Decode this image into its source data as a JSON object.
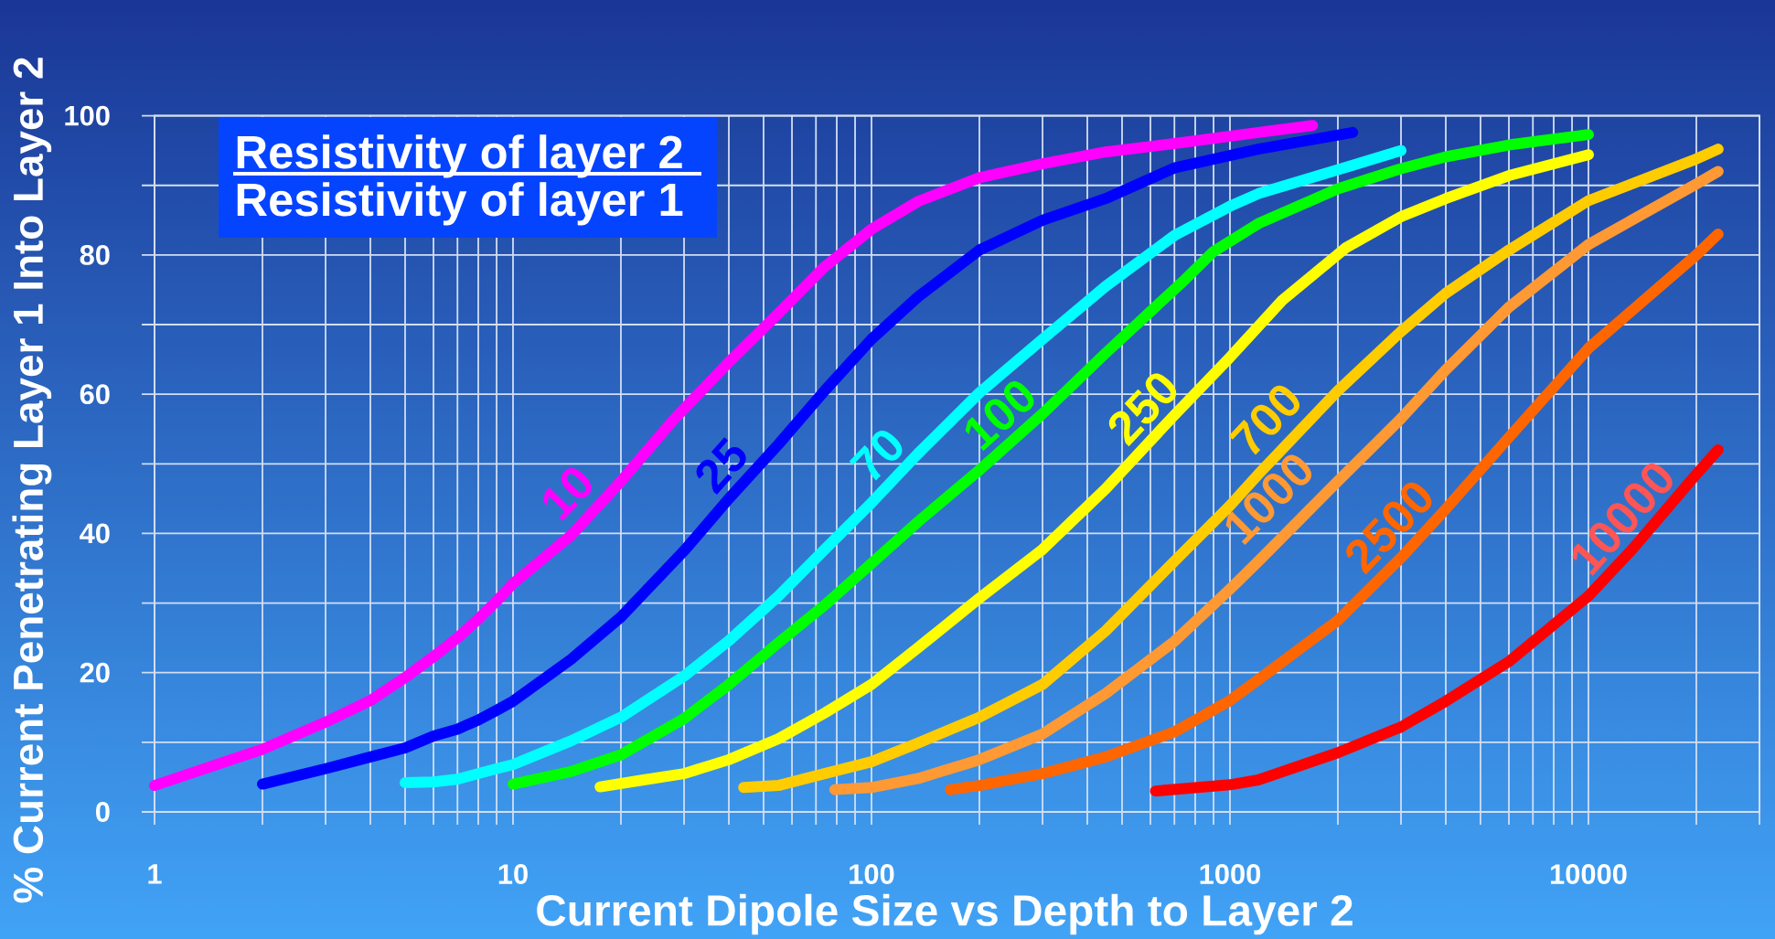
{
  "chart_data": {
    "type": "line",
    "xlabel": "Current Dipole Size vs Depth to Layer 2",
    "ylabel": "% Current Penetrating Layer 1 Into Layer 2",
    "annotations": [
      "Resistivity of layer 2",
      "Resistivity of layer 1"
    ],
    "log": "x",
    "grid": true,
    "xlim": [
      1,
      30000
    ],
    "ylim": [
      0,
      100
    ],
    "xticks": [
      1,
      {
        "value": 2,
        "label": null
      },
      {
        "value": 3,
        "label": null
      },
      {
        "value": 4,
        "label": null
      },
      {
        "value": 5,
        "label": null
      },
      {
        "value": 6,
        "label": null
      },
      {
        "value": 7,
        "label": null
      },
      {
        "value": 8,
        "label": null
      },
      {
        "value": 9,
        "label": null
      },
      10,
      {
        "value": 20,
        "label": null
      },
      {
        "value": 30,
        "label": null
      },
      {
        "value": 40,
        "label": null
      },
      {
        "value": 50,
        "label": null
      },
      {
        "value": 60,
        "label": null
      },
      {
        "value": 70,
        "label": null
      },
      {
        "value": 80,
        "label": null
      },
      {
        "value": 90,
        "label": null
      },
      100,
      {
        "value": 200,
        "label": null
      },
      {
        "value": 300,
        "label": null
      },
      {
        "value": 400,
        "label": null
      },
      {
        "value": 500,
        "label": null
      },
      {
        "value": 600,
        "label": null
      },
      {
        "value": 700,
        "label": null
      },
      {
        "value": 800,
        "label": null
      },
      {
        "value": 900,
        "label": null
      },
      1000,
      {
        "value": 2000,
        "label": null
      },
      {
        "value": 3000,
        "label": null
      },
      {
        "value": 4000,
        "label": null
      },
      {
        "value": 5000,
        "label": null
      },
      {
        "value": 6000,
        "label": null
      },
      {
        "value": 7000,
        "label": null
      },
      {
        "value": 8000,
        "label": null
      },
      {
        "value": 9000,
        "label": null
      },
      10000,
      {
        "value": 20000,
        "label": null
      },
      {
        "value": 30000,
        "label": null
      }
    ],
    "yticks": [
      0,
      {
        "value": 10,
        "label": null
      },
      20,
      {
        "value": 30,
        "label": null
      },
      40,
      {
        "value": 50,
        "label": null
      },
      60,
      {
        "value": 70,
        "label": null
      },
      80,
      {
        "value": 90,
        "label": null
      },
      100
    ],
    "series": [
      {
        "name": "10",
        "color": "#ff00ff",
        "x": [
          1,
          2,
          3,
          4,
          5,
          6,
          7,
          8,
          9,
          10,
          14.5,
          20,
          28,
          40,
          55,
          74,
          100,
          135,
          200,
          300,
          450,
          750,
          1200,
          1700
        ],
        "values": [
          3.8,
          9.0,
          12.9,
          16.0,
          19.3,
          22.3,
          25.0,
          27.7,
          30.3,
          32.8,
          39.7,
          47.5,
          56.3,
          64.6,
          71.6,
          78.3,
          83.7,
          87.7,
          91.1,
          93.1,
          94.8,
          96.2,
          97.6,
          98.6
        ]
      },
      {
        "name": "25",
        "color": "#0000ff",
        "x": [
          2,
          3,
          4,
          5,
          6,
          7,
          8,
          9,
          10,
          14.5,
          20,
          30,
          40,
          55,
          74,
          100,
          135,
          200,
          300,
          450,
          700,
          1200,
          2200
        ],
        "values": [
          4.0,
          6.2,
          7.9,
          9.2,
          10.9,
          11.9,
          13.2,
          14.6,
          15.9,
          21.9,
          28.0,
          37.5,
          45.0,
          52.8,
          60.5,
          67.9,
          74.0,
          80.7,
          85.0,
          88.1,
          92.5,
          95.2,
          97.6
        ]
      },
      {
        "name": "70",
        "color": "#00ffff",
        "x": [
          5,
          6,
          7,
          9,
          10,
          14.5,
          20,
          30,
          40,
          55,
          74,
          100,
          135,
          200,
          300,
          450,
          700,
          1000,
          1200,
          2200,
          3000
        ],
        "values": [
          4.2,
          4.3,
          4.7,
          6.2,
          6.8,
          10.2,
          13.6,
          19.5,
          24.6,
          31.0,
          37.7,
          44.4,
          51.5,
          60.2,
          67.9,
          75.5,
          82.8,
          87.0,
          88.8,
          92.9,
          95.0
        ]
      },
      {
        "name": "100",
        "color": "#00ff00",
        "x": [
          10,
          14.5,
          20,
          30,
          40,
          55,
          74,
          100,
          135,
          200,
          300,
          450,
          750,
          900,
          1200,
          2000,
          3000,
          4000,
          6000,
          10000
        ],
        "values": [
          4.0,
          5.8,
          8.2,
          13.4,
          18.3,
          24.3,
          29.7,
          35.7,
          41.7,
          49.1,
          57.2,
          65.9,
          76.5,
          80.5,
          84.5,
          89.5,
          92.4,
          94.1,
          95.8,
          97.3
        ]
      },
      {
        "name": "250",
        "color": "#ffff00",
        "x": [
          17.5,
          22.5,
          30,
          40,
          55,
          74,
          100,
          135,
          200,
          300,
          450,
          700,
          1000,
          1400,
          2100,
          3000,
          4000,
          6000,
          10000
        ],
        "values": [
          3.6,
          4.5,
          5.5,
          7.5,
          10.5,
          14.2,
          18.3,
          23.6,
          30.7,
          37.7,
          46.4,
          57.0,
          65.3,
          73.5,
          81.0,
          85.5,
          88.1,
          91.4,
          94.4
        ]
      },
      {
        "name": "700",
        "color": "#ffcc00",
        "x": [
          44,
          55,
          74,
          100,
          135,
          200,
          300,
          450,
          700,
          1000,
          1200,
          2000,
          3000,
          4000,
          6000,
          10000,
          20000,
          23000
        ],
        "values": [
          3.5,
          3.8,
          5.5,
          7.2,
          9.9,
          13.6,
          18.3,
          26.0,
          36.0,
          44.0,
          48.5,
          60.5,
          69.0,
          74.5,
          80.7,
          87.8,
          93.8,
          95.2
        ]
      },
      {
        "name": "1000",
        "color": "#ff9933",
        "x": [
          79,
          100,
          135,
          200,
          300,
          450,
          700,
          1000,
          1200,
          2000,
          3000,
          4000,
          6000,
          10000,
          20000,
          23000
        ],
        "values": [
          3.2,
          3.5,
          4.8,
          7.5,
          11.2,
          17.0,
          24.5,
          32.0,
          36.0,
          47.5,
          56.5,
          63.5,
          72.5,
          81.5,
          90.2,
          92.0
        ]
      },
      {
        "name": "2500",
        "color": "#ff6600",
        "x": [
          166,
          200,
          300,
          450,
          700,
          1000,
          1200,
          2000,
          3000,
          4000,
          6000,
          10000,
          20000,
          23000
        ],
        "values": [
          3.2,
          3.8,
          5.5,
          7.9,
          11.5,
          16.0,
          19.0,
          27.5,
          36.5,
          43.5,
          53.8,
          66.6,
          80.0,
          83.0
        ]
      },
      {
        "name": "10000",
        "color": "#ff0000",
        "x": [
          620,
          1000,
          1200,
          2000,
          3000,
          4000,
          6000,
          10000,
          13400,
          20000,
          23000
        ],
        "values": [
          3.0,
          3.9,
          4.6,
          8.5,
          12.2,
          15.9,
          21.6,
          31.0,
          38.0,
          48.5,
          52.0
        ]
      }
    ]
  }
}
